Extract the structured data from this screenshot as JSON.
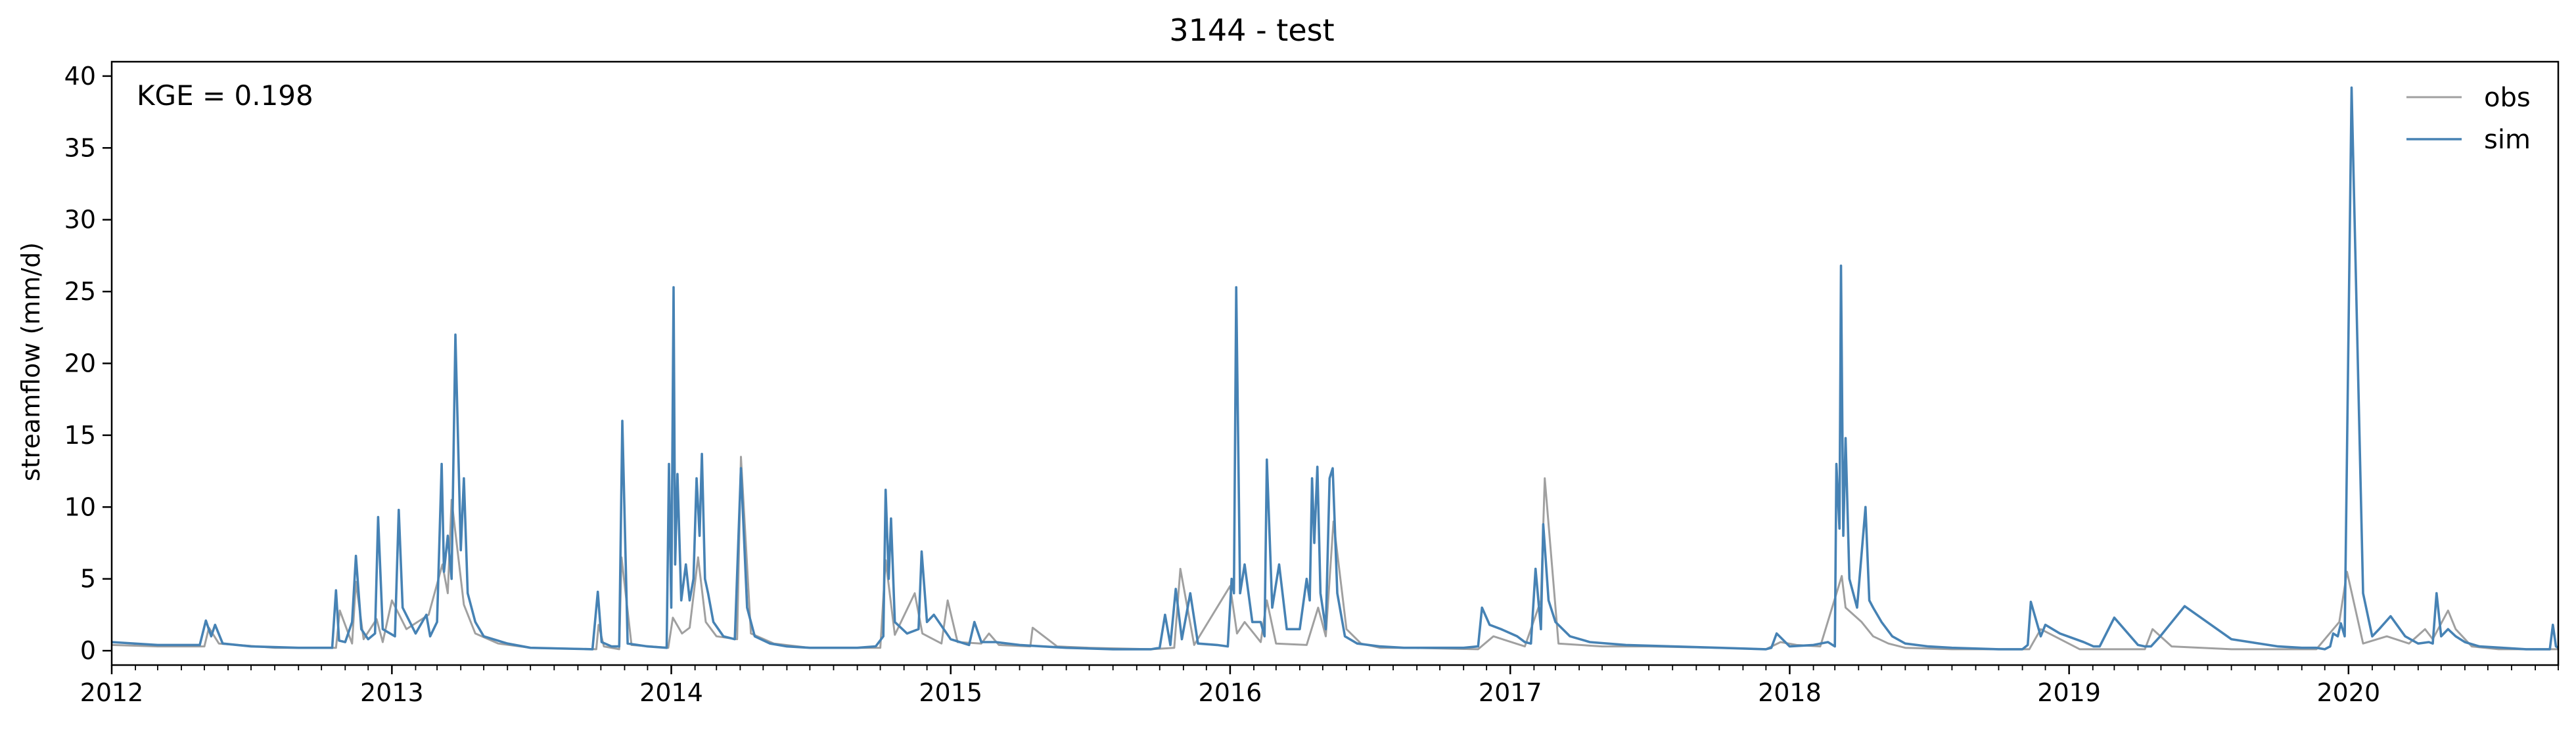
{
  "chart_data": {
    "type": "line",
    "title": "3144 - test",
    "xlabel": "",
    "ylabel": "streamflow (mm/d)",
    "annotation": "KGE = 0.198",
    "x_start": "2012-01-01",
    "x_end": "2020-10-01",
    "xlim": [
      "2012-01-01",
      "2020-10-01"
    ],
    "ylim": [
      -1,
      41
    ],
    "x_ticks": [
      "2012",
      "2013",
      "2014",
      "2015",
      "2016",
      "2017",
      "2018",
      "2019",
      "2020"
    ],
    "y_ticks": [
      0,
      5,
      10,
      15,
      20,
      25,
      30,
      35,
      40
    ],
    "grid": false,
    "legend": "top-right",
    "colors": {
      "obs": "#a0a0a0",
      "sim": "#4682b4"
    },
    "series": [
      {
        "name": "obs",
        "color": "#a0a0a0",
        "x": [
          "2012-01-01",
          "2012-03-01",
          "2012-05-01",
          "2012-05-07",
          "2012-05-20",
          "2012-08-01",
          "2012-10-20",
          "2012-10-25",
          "2012-11-10",
          "2012-11-15",
          "2012-11-25",
          "2012-12-12",
          "2012-12-20",
          "2013-01-01",
          "2013-01-20",
          "2013-02-18",
          "2013-03-08",
          "2013-03-15",
          "2013-03-20",
          "2013-04-05",
          "2013-04-20",
          "2013-05-20",
          "2013-07-01",
          "2013-09-25",
          "2013-09-28",
          "2013-10-05",
          "2013-10-25",
          "2013-10-28",
          "2013-11-10",
          "2013-12-28",
          "2014-01-03",
          "2014-01-15",
          "2014-01-25",
          "2014-02-05",
          "2014-02-15",
          "2014-03-01",
          "2014-03-28",
          "2014-04-02",
          "2014-04-15",
          "2014-05-15",
          "2014-07-01",
          "2014-10-01",
          "2014-10-08",
          "2014-10-20",
          "2014-11-15",
          "2014-11-25",
          "2014-12-20",
          "2014-12-28",
          "2015-01-10",
          "2015-02-10",
          "2015-02-20",
          "2015-03-05",
          "2015-04-15",
          "2015-04-18",
          "2015-05-20",
          "2015-07-01",
          "2015-09-20",
          "2015-10-20",
          "2015-10-28",
          "2015-11-15",
          "2016-01-01",
          "2016-01-10",
          "2016-01-20",
          "2016-02-10",
          "2016-02-18",
          "2016-03-01",
          "2016-04-10",
          "2016-04-25",
          "2016-05-05",
          "2016-05-15",
          "2016-06-01",
          "2016-06-20",
          "2016-07-15",
          "2016-08-20",
          "2016-11-20",
          "2016-12-10",
          "2017-01-20",
          "2017-02-10",
          "2017-02-15",
          "2017-03-05",
          "2017-05-01",
          "2017-07-01",
          "2017-10-01",
          "2017-12-01",
          "2017-12-20",
          "2018-01-10",
          "2018-02-10",
          "2018-03-10",
          "2018-03-15",
          "2018-04-05",
          "2018-04-20",
          "2018-05-10",
          "2018-06-01",
          "2018-08-01",
          "2018-11-10",
          "2018-11-25",
          "2019-01-15",
          "2019-02-01",
          "2019-04-10",
          "2019-04-20",
          "2019-05-15",
          "2019-08-01",
          "2019-11-20",
          "2019-12-20",
          "2019-12-30",
          "2020-01-20",
          "2020-02-20",
          "2020-03-20",
          "2020-04-10",
          "2020-04-20",
          "2020-05-10",
          "2020-05-20",
          "2020-06-10",
          "2020-07-15",
          "2020-09-20",
          "2020-10-01"
        ],
        "y": [
          0.4,
          0.3,
          0.3,
          1.6,
          0.5,
          0.2,
          0.2,
          2.8,
          0.5,
          4.8,
          0.8,
          2.2,
          0.6,
          3.5,
          1.5,
          2.5,
          6.0,
          4.0,
          10.5,
          3.2,
          1.2,
          0.5,
          0.2,
          0.1,
          1.8,
          0.3,
          0.1,
          6.5,
          0.4,
          0.2,
          2.3,
          1.2,
          1.6,
          6.5,
          2.0,
          1.0,
          0.8,
          13.5,
          1.2,
          0.5,
          0.2,
          0.2,
          6.3,
          1.1,
          4.0,
          1.2,
          0.5,
          3.5,
          0.6,
          0.5,
          1.2,
          0.4,
          0.3,
          1.6,
          0.3,
          0.2,
          0.1,
          0.2,
          5.7,
          0.4,
          4.5,
          1.2,
          2.0,
          0.6,
          3.5,
          0.5,
          0.4,
          3.0,
          1.0,
          9.0,
          1.5,
          0.5,
          0.2,
          0.2,
          0.1,
          1.0,
          0.3,
          3.5,
          12.0,
          0.5,
          0.3,
          0.3,
          0.2,
          0.1,
          0.6,
          0.4,
          0.3,
          5.2,
          3.0,
          2.0,
          1.0,
          0.5,
          0.2,
          0.1,
          0.1,
          1.5,
          0.1,
          0.1,
          0.1,
          1.5,
          0.3,
          0.1,
          0.1,
          2.0,
          5.5,
          0.5,
          1.0,
          0.5,
          1.5,
          0.8,
          2.8,
          1.5,
          0.3,
          0.1,
          0.1,
          0.1
        ]
      },
      {
        "name": "sim",
        "color": "#4682b4",
        "x": [
          "2012-01-01",
          "2012-03-01",
          "2012-04-25",
          "2012-05-03",
          "2012-05-10",
          "2012-05-15",
          "2012-05-25",
          "2012-07-01",
          "2012-09-01",
          "2012-10-15",
          "2012-10-20",
          "2012-10-24",
          "2012-11-01",
          "2012-11-10",
          "2012-11-15",
          "2012-11-22",
          "2012-12-01",
          "2012-12-10",
          "2012-12-14",
          "2012-12-20",
          "2013-01-05",
          "2013-01-10",
          "2013-01-15",
          "2013-02-01",
          "2013-02-15",
          "2013-02-20",
          "2013-03-01",
          "2013-03-07",
          "2013-03-10",
          "2013-03-15",
          "2013-03-20",
          "2013-03-25",
          "2013-04-01",
          "2013-04-05",
          "2013-04-10",
          "2013-04-20",
          "2013-05-01",
          "2013-06-01",
          "2013-07-01",
          "2013-09-20",
          "2013-09-27",
          "2013-10-02",
          "2013-10-15",
          "2013-10-25",
          "2013-10-29",
          "2013-11-05",
          "2013-12-01",
          "2013-12-26",
          "2013-12-29",
          "2014-01-01",
          "2014-01-04",
          "2014-01-06",
          "2014-01-09",
          "2014-01-14",
          "2014-01-20",
          "2014-01-25",
          "2014-01-30",
          "2014-02-03",
          "2014-02-07",
          "2014-02-10",
          "2014-02-14",
          "2014-02-18",
          "2014-02-25",
          "2014-03-10",
          "2014-03-25",
          "2014-04-02",
          "2014-04-10",
          "2014-04-20",
          "2014-05-10",
          "2014-06-01",
          "2014-07-01",
          "2014-09-01",
          "2014-09-25",
          "2014-10-05",
          "2014-10-08",
          "2014-10-12",
          "2014-10-15",
          "2014-10-20",
          "2014-11-05",
          "2014-11-20",
          "2014-11-24",
          "2014-12-01",
          "2014-12-10",
          "2015-01-01",
          "2015-01-25",
          "2015-02-01",
          "2015-02-10",
          "2015-03-01",
          "2015-04-01",
          "2015-05-01",
          "2015-06-01",
          "2015-08-01",
          "2015-09-20",
          "2015-10-01",
          "2015-10-08",
          "2015-10-15",
          "2015-10-22",
          "2015-10-30",
          "2015-11-10",
          "2015-11-20",
          "2015-12-15",
          "2015-12-29",
          "2016-01-03",
          "2016-01-06",
          "2016-01-09",
          "2016-01-14",
          "2016-01-20",
          "2016-01-30",
          "2016-02-10",
          "2016-02-15",
          "2016-02-18",
          "2016-02-25",
          "2016-03-05",
          "2016-03-15",
          "2016-04-01",
          "2016-04-10",
          "2016-04-14",
          "2016-04-17",
          "2016-04-20",
          "2016-04-24",
          "2016-04-28",
          "2016-05-05",
          "2016-05-10",
          "2016-05-14",
          "2016-05-20",
          "2016-05-30",
          "2016-06-15",
          "2016-07-15",
          "2016-08-15",
          "2016-10-01",
          "2016-11-01",
          "2016-11-20",
          "2016-11-25",
          "2016-12-05",
          "2016-12-20",
          "2017-01-10",
          "2017-01-20",
          "2017-01-28",
          "2017-02-03",
          "2017-02-10",
          "2017-02-13",
          "2017-02-20",
          "2017-03-01",
          "2017-03-20",
          "2017-04-15",
          "2017-06-01",
          "2017-08-01",
          "2017-10-01",
          "2017-12-01",
          "2017-12-08",
          "2017-12-15",
          "2018-01-01",
          "2018-02-01",
          "2018-02-20",
          "2018-03-01",
          "2018-03-03",
          "2018-03-07",
          "2018-03-09",
          "2018-03-12",
          "2018-03-15",
          "2018-03-20",
          "2018-03-30",
          "2018-04-10",
          "2018-04-15",
          "2018-04-20",
          "2018-05-01",
          "2018-05-15",
          "2018-06-01",
          "2018-07-01",
          "2018-08-01",
          "2018-10-01",
          "2018-11-01",
          "2018-11-08",
          "2018-11-12",
          "2018-11-25",
          "2018-12-01",
          "2018-12-20",
          "2019-01-20",
          "2019-02-02",
          "2019-02-10",
          "2019-03-01",
          "2019-04-01",
          "2019-04-10",
          "2019-04-18",
          "2019-04-30",
          "2019-06-01",
          "2019-08-01",
          "2019-10-01",
          "2019-11-01",
          "2019-11-20",
          "2019-12-01",
          "2019-12-08",
          "2019-12-12",
          "2019-12-18",
          "2019-12-22",
          "2019-12-27",
          "2020-01-05",
          "2020-01-20",
          "2020-02-01",
          "2020-02-10",
          "2020-02-25",
          "2020-03-15",
          "2020-04-01",
          "2020-04-15",
          "2020-04-20",
          "2020-04-25",
          "2020-05-01",
          "2020-05-10",
          "2020-05-20",
          "2020-06-01",
          "2020-06-20",
          "2020-07-20",
          "2020-08-20",
          "2020-09-20",
          "2020-09-24",
          "2020-09-28",
          "2020-10-01"
        ],
        "y": [
          0.6,
          0.4,
          0.4,
          2.1,
          1.0,
          1.8,
          0.5,
          0.3,
          0.2,
          0.2,
          4.2,
          0.7,
          0.6,
          2.0,
          6.6,
          1.5,
          0.8,
          1.2,
          9.3,
          1.5,
          1.0,
          9.8,
          3.0,
          1.2,
          2.5,
          1.0,
          2.0,
          13.0,
          5.5,
          8.0,
          5.0,
          22.0,
          7.0,
          12.0,
          4.0,
          2.0,
          1.0,
          0.5,
          0.2,
          0.1,
          4.1,
          0.6,
          0.3,
          0.3,
          16.0,
          0.5,
          0.3,
          0.2,
          13.0,
          3.0,
          25.3,
          6.0,
          12.3,
          3.5,
          6.0,
          3.5,
          5.0,
          12.0,
          8.0,
          13.7,
          5.0,
          4.0,
          2.0,
          1.0,
          0.8,
          12.7,
          3.0,
          1.0,
          0.5,
          0.3,
          0.2,
          0.2,
          0.3,
          1.0,
          11.2,
          5.0,
          9.2,
          2.0,
          1.2,
          1.5,
          6.9,
          2.0,
          2.5,
          0.8,
          0.4,
          2.0,
          0.6,
          0.6,
          0.4,
          0.3,
          0.2,
          0.1,
          0.1,
          0.2,
          2.5,
          0.4,
          4.3,
          0.8,
          4.0,
          0.5,
          0.4,
          0.3,
          5.0,
          4.0,
          25.3,
          4.0,
          6.0,
          2.0,
          2.0,
          1.0,
          13.3,
          3.0,
          6.0,
          1.5,
          1.5,
          5.0,
          3.5,
          12.0,
          7.5,
          12.8,
          4.0,
          1.5,
          12.0,
          12.7,
          4.0,
          1.0,
          0.5,
          0.3,
          0.2,
          0.2,
          0.2,
          0.3,
          3.0,
          1.8,
          1.5,
          1.0,
          0.6,
          0.5,
          5.7,
          1.5,
          8.8,
          3.5,
          2.0,
          1.0,
          0.6,
          0.4,
          0.3,
          0.2,
          0.1,
          0.2,
          1.2,
          0.3,
          0.4,
          0.6,
          0.3,
          13.0,
          8.5,
          26.8,
          8.0,
          14.8,
          5.0,
          3.0,
          10.0,
          3.5,
          3.0,
          2.0,
          1.0,
          0.5,
          0.3,
          0.2,
          0.1,
          0.1,
          0.4,
          3.4,
          1.0,
          1.8,
          1.2,
          0.6,
          0.3,
          0.3,
          2.3,
          0.4,
          0.3,
          0.3,
          1.0,
          3.1,
          0.8,
          0.3,
          0.2,
          0.2,
          0.1,
          0.3,
          1.2,
          1.0,
          1.9,
          1.0,
          39.2,
          4.0,
          1.0,
          1.5,
          2.4,
          1.0,
          0.5,
          0.6,
          0.5,
          4.0,
          1.0,
          1.5,
          1.0,
          0.6,
          0.3,
          0.2,
          0.1,
          0.1,
          1.8,
          0.3,
          0.2
        ]
      }
    ]
  }
}
